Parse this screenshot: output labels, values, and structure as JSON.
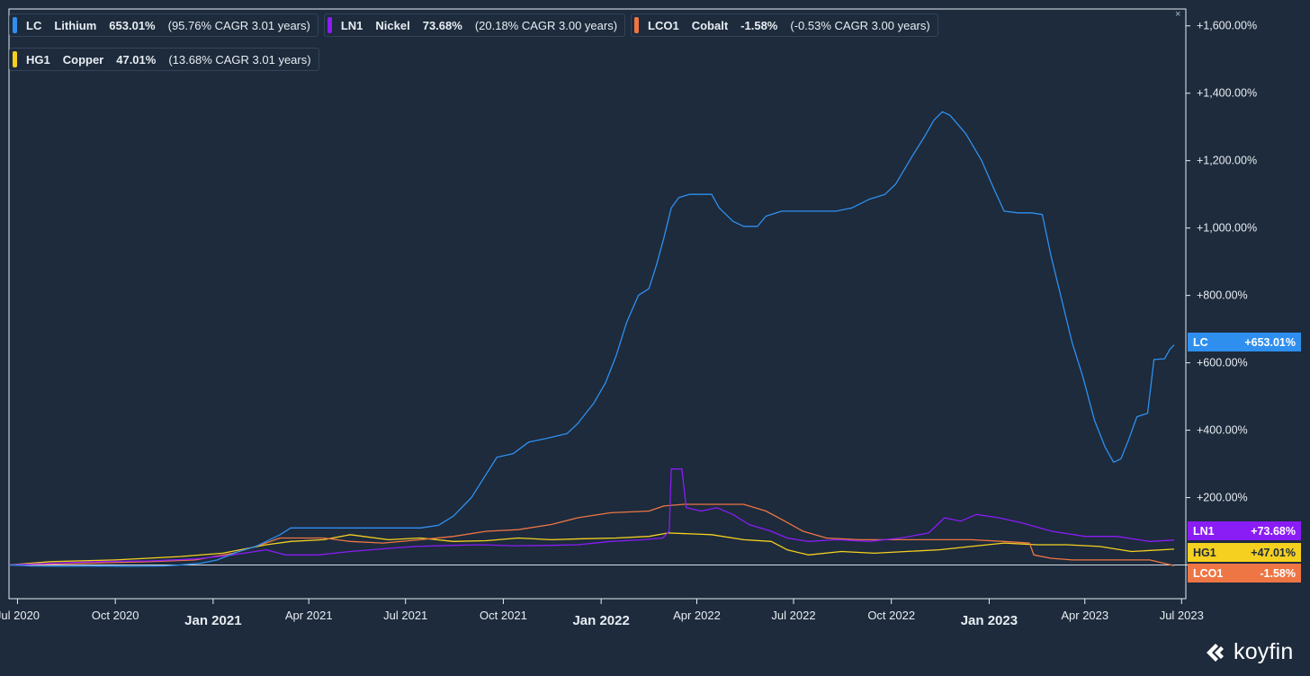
{
  "chart_data": {
    "type": "line",
    "x_range": [
      "2020-06-23",
      "2023-07-05"
    ],
    "y_range": [
      -100,
      1650
    ],
    "ylabel_format": "+{v}%",
    "y_ticks": [
      {
        "value": 0,
        "label": ""
      },
      {
        "value": 200,
        "label": "+200.00%"
      },
      {
        "value": 400,
        "label": "+400.00%"
      },
      {
        "value": 600,
        "label": "+600.00%"
      },
      {
        "value": 800,
        "label": "+800.00%"
      },
      {
        "value": 1000,
        "label": "+1,000.00%"
      },
      {
        "value": 1200,
        "label": "+1,200.00%"
      },
      {
        "value": 1400,
        "label": "+1,400.00%"
      },
      {
        "value": 1600,
        "label": "+1,600.00%"
      }
    ],
    "x_ticks": [
      {
        "date": "2020-07-01",
        "label": "Jul 2020",
        "bold": false
      },
      {
        "date": "2020-10-01",
        "label": "Oct 2020",
        "bold": false
      },
      {
        "date": "2021-01-01",
        "label": "Jan 2021",
        "bold": true
      },
      {
        "date": "2021-04-01",
        "label": "Apr 2021",
        "bold": false
      },
      {
        "date": "2021-07-01",
        "label": "Jul 2021",
        "bold": false
      },
      {
        "date": "2021-10-01",
        "label": "Oct 2021",
        "bold": false
      },
      {
        "date": "2022-01-01",
        "label": "Jan 2022",
        "bold": true
      },
      {
        "date": "2022-04-01",
        "label": "Apr 2022",
        "bold": false
      },
      {
        "date": "2022-07-01",
        "label": "Jul 2022",
        "bold": false
      },
      {
        "date": "2022-10-01",
        "label": "Oct 2022",
        "bold": false
      },
      {
        "date": "2023-01-01",
        "label": "Jan 2023",
        "bold": true
      },
      {
        "date": "2023-04-01",
        "label": "Apr 2023",
        "bold": false
      },
      {
        "date": "2023-07-01",
        "label": "Jul 2023",
        "bold": false
      }
    ],
    "series": [
      {
        "ticker": "LC",
        "name": "Lithium",
        "color": "#2f8fef",
        "return_label": "653.01%",
        "cagr_label": "(95.76% CAGR 3.01 years)",
        "tag_value": "+653.01%",
        "points": [
          [
            "2020-06-23",
            0
          ],
          [
            "2020-07-15",
            -3
          ],
          [
            "2020-08-15",
            -4
          ],
          [
            "2020-09-15",
            -3
          ],
          [
            "2020-10-15",
            -4
          ],
          [
            "2020-11-15",
            -3
          ],
          [
            "2020-12-01",
            0
          ],
          [
            "2020-12-20",
            5
          ],
          [
            "2021-01-05",
            15
          ],
          [
            "2021-01-25",
            40
          ],
          [
            "2021-02-10",
            55
          ],
          [
            "2021-02-20",
            70
          ],
          [
            "2021-03-05",
            90
          ],
          [
            "2021-03-15",
            110
          ],
          [
            "2021-04-15",
            110
          ],
          [
            "2021-05-15",
            110
          ],
          [
            "2021-06-15",
            110
          ],
          [
            "2021-07-15",
            110
          ],
          [
            "2021-08-01",
            118
          ],
          [
            "2021-08-15",
            145
          ],
          [
            "2021-09-01",
            200
          ],
          [
            "2021-09-15",
            270
          ],
          [
            "2021-09-25",
            320
          ],
          [
            "2021-10-10",
            330
          ],
          [
            "2021-10-25",
            365
          ],
          [
            "2021-11-10",
            375
          ],
          [
            "2021-11-30",
            390
          ],
          [
            "2021-12-10",
            420
          ],
          [
            "2021-12-25",
            480
          ],
          [
            "2022-01-05",
            540
          ],
          [
            "2022-01-15",
            620
          ],
          [
            "2022-01-25",
            720
          ],
          [
            "2022-02-05",
            800
          ],
          [
            "2022-02-15",
            820
          ],
          [
            "2022-02-22",
            890
          ],
          [
            "2022-03-01",
            970
          ],
          [
            "2022-03-08",
            1060
          ],
          [
            "2022-03-15",
            1090
          ],
          [
            "2022-03-25",
            1100
          ],
          [
            "2022-04-15",
            1100
          ],
          [
            "2022-04-22",
            1060
          ],
          [
            "2022-05-05",
            1020
          ],
          [
            "2022-05-15",
            1005
          ],
          [
            "2022-05-28",
            1005
          ],
          [
            "2022-06-05",
            1035
          ],
          [
            "2022-06-20",
            1050
          ],
          [
            "2022-07-15",
            1050
          ],
          [
            "2022-08-10",
            1050
          ],
          [
            "2022-08-25",
            1060
          ],
          [
            "2022-09-10",
            1085
          ],
          [
            "2022-09-25",
            1100
          ],
          [
            "2022-10-05",
            1130
          ],
          [
            "2022-10-20",
            1210
          ],
          [
            "2022-11-01",
            1270
          ],
          [
            "2022-11-10",
            1320
          ],
          [
            "2022-11-18",
            1345
          ],
          [
            "2022-11-25",
            1335
          ],
          [
            "2022-12-10",
            1280
          ],
          [
            "2022-12-25",
            1200
          ],
          [
            "2023-01-05",
            1120
          ],
          [
            "2023-01-15",
            1050
          ],
          [
            "2023-01-28",
            1045
          ],
          [
            "2023-02-10",
            1045
          ],
          [
            "2023-02-20",
            1040
          ],
          [
            "2023-02-28",
            920
          ],
          [
            "2023-03-10",
            790
          ],
          [
            "2023-03-20",
            660
          ],
          [
            "2023-03-30",
            560
          ],
          [
            "2023-04-10",
            430
          ],
          [
            "2023-04-20",
            350
          ],
          [
            "2023-04-28",
            305
          ],
          [
            "2023-05-05",
            315
          ],
          [
            "2023-05-12",
            370
          ],
          [
            "2023-05-20",
            440
          ],
          [
            "2023-05-30",
            450
          ],
          [
            "2023-06-05",
            610
          ],
          [
            "2023-06-15",
            612
          ],
          [
            "2023-06-20",
            640
          ],
          [
            "2023-06-24",
            653
          ]
        ]
      },
      {
        "ticker": "LN1",
        "name": "Nickel",
        "color": "#8a1cf5",
        "return_label": "73.68%",
        "cagr_label": "(20.18% CAGR 3.00 years)",
        "tag_value": "+73.68%",
        "points": [
          [
            "2020-06-23",
            0
          ],
          [
            "2020-08-01",
            5
          ],
          [
            "2020-09-15",
            10
          ],
          [
            "2020-11-01",
            12
          ],
          [
            "2020-12-15",
            18
          ],
          [
            "2021-01-15",
            28
          ],
          [
            "2021-02-20",
            45
          ],
          [
            "2021-03-10",
            30
          ],
          [
            "2021-04-10",
            30
          ],
          [
            "2021-05-10",
            40
          ],
          [
            "2021-06-10",
            48
          ],
          [
            "2021-07-10",
            55
          ],
          [
            "2021-08-10",
            58
          ],
          [
            "2021-09-10",
            60
          ],
          [
            "2021-10-10",
            57
          ],
          [
            "2021-11-10",
            58
          ],
          [
            "2021-12-10",
            60
          ],
          [
            "2022-01-10",
            70
          ],
          [
            "2022-02-10",
            75
          ],
          [
            "2022-02-28",
            80
          ],
          [
            "2022-03-06",
            100
          ],
          [
            "2022-03-08",
            285
          ],
          [
            "2022-03-18",
            285
          ],
          [
            "2022-03-22",
            170
          ],
          [
            "2022-04-05",
            160
          ],
          [
            "2022-04-20",
            170
          ],
          [
            "2022-05-05",
            150
          ],
          [
            "2022-05-20",
            120
          ],
          [
            "2022-06-10",
            100
          ],
          [
            "2022-06-25",
            80
          ],
          [
            "2022-07-15",
            70
          ],
          [
            "2022-08-10",
            75
          ],
          [
            "2022-09-10",
            70
          ],
          [
            "2022-10-10",
            80
          ],
          [
            "2022-11-05",
            95
          ],
          [
            "2022-11-20",
            140
          ],
          [
            "2022-12-05",
            130
          ],
          [
            "2022-12-20",
            150
          ],
          [
            "2023-01-10",
            140
          ],
          [
            "2023-02-01",
            125
          ],
          [
            "2023-03-01",
            100
          ],
          [
            "2023-04-01",
            85
          ],
          [
            "2023-05-01",
            85
          ],
          [
            "2023-06-01",
            70
          ],
          [
            "2023-06-24",
            74
          ]
        ]
      },
      {
        "ticker": "LCO1",
        "name": "Cobalt",
        "color": "#ee7544",
        "return_label": "-1.58%",
        "cagr_label": "(-0.53% CAGR 3.00 years)",
        "tag_value": "-1.58%",
        "points": [
          [
            "2020-06-23",
            0
          ],
          [
            "2020-09-01",
            5
          ],
          [
            "2020-11-01",
            10
          ],
          [
            "2020-12-15",
            15
          ],
          [
            "2021-01-20",
            35
          ],
          [
            "2021-02-15",
            60
          ],
          [
            "2021-03-05",
            80
          ],
          [
            "2021-04-15",
            80
          ],
          [
            "2021-05-10",
            70
          ],
          [
            "2021-06-10",
            65
          ],
          [
            "2021-07-15",
            75
          ],
          [
            "2021-08-15",
            85
          ],
          [
            "2021-09-15",
            100
          ],
          [
            "2021-10-15",
            105
          ],
          [
            "2021-11-15",
            120
          ],
          [
            "2021-12-10",
            140
          ],
          [
            "2022-01-10",
            155
          ],
          [
            "2022-02-15",
            160
          ],
          [
            "2022-03-01",
            175
          ],
          [
            "2022-03-20",
            180
          ],
          [
            "2022-05-15",
            180
          ],
          [
            "2022-06-05",
            160
          ],
          [
            "2022-06-20",
            135
          ],
          [
            "2022-07-10",
            100
          ],
          [
            "2022-08-01",
            80
          ],
          [
            "2022-09-01",
            75
          ],
          [
            "2022-10-15",
            75
          ],
          [
            "2022-11-15",
            75
          ],
          [
            "2022-12-15",
            75
          ],
          [
            "2023-01-15",
            70
          ],
          [
            "2023-02-08",
            65
          ],
          [
            "2023-02-12",
            30
          ],
          [
            "2023-02-28",
            20
          ],
          [
            "2023-03-20",
            15
          ],
          [
            "2023-04-15",
            15
          ],
          [
            "2023-05-10",
            15
          ],
          [
            "2023-06-01",
            15
          ],
          [
            "2023-06-24",
            -2
          ]
        ]
      },
      {
        "ticker": "HG1",
        "name": "Copper",
        "color": "#f5d020",
        "return_label": "47.01%",
        "cagr_label": "(13.68% CAGR 3.01 years)",
        "tag_value": "+47.01%",
        "points": [
          [
            "2020-06-23",
            0
          ],
          [
            "2020-08-01",
            10
          ],
          [
            "2020-10-01",
            15
          ],
          [
            "2020-12-01",
            25
          ],
          [
            "2021-01-10",
            35
          ],
          [
            "2021-02-20",
            60
          ],
          [
            "2021-03-15",
            70
          ],
          [
            "2021-04-15",
            75
          ],
          [
            "2021-05-10",
            90
          ],
          [
            "2021-06-15",
            75
          ],
          [
            "2021-07-15",
            80
          ],
          [
            "2021-08-15",
            70
          ],
          [
            "2021-09-15",
            72
          ],
          [
            "2021-10-15",
            80
          ],
          [
            "2021-11-15",
            75
          ],
          [
            "2021-12-15",
            78
          ],
          [
            "2022-01-15",
            80
          ],
          [
            "2022-02-15",
            85
          ],
          [
            "2022-03-05",
            95
          ],
          [
            "2022-04-15",
            90
          ],
          [
            "2022-05-15",
            75
          ],
          [
            "2022-06-10",
            70
          ],
          [
            "2022-06-25",
            45
          ],
          [
            "2022-07-15",
            30
          ],
          [
            "2022-08-15",
            40
          ],
          [
            "2022-09-15",
            35
          ],
          [
            "2022-10-15",
            40
          ],
          [
            "2022-11-15",
            45
          ],
          [
            "2022-12-15",
            55
          ],
          [
            "2023-01-15",
            65
          ],
          [
            "2023-02-15",
            60
          ],
          [
            "2023-03-15",
            60
          ],
          [
            "2023-04-15",
            55
          ],
          [
            "2023-05-15",
            40
          ],
          [
            "2023-06-24",
            47
          ]
        ]
      }
    ]
  },
  "tags_order": [
    "LN1",
    "HG1",
    "LC",
    "LCO1"
  ],
  "legend_rows": [
    [
      "LC",
      "LN1",
      "LCO1"
    ],
    [
      "HG1"
    ]
  ],
  "close_glyph": "×",
  "brand": {
    "logo_text": "koyfin",
    "color": "#ffffff"
  },
  "colors": {
    "background": "#1d2b3c",
    "text": "#e8edf3",
    "axis": "#e8edf3"
  }
}
